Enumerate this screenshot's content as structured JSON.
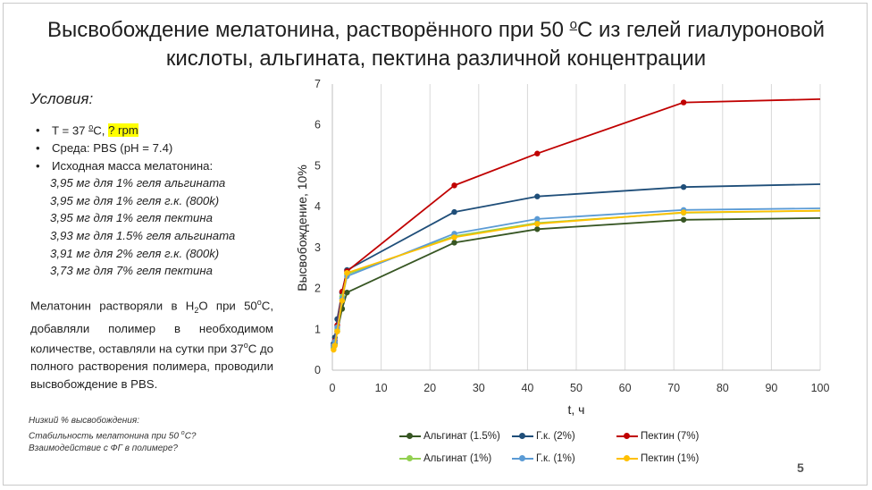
{
  "slide": {
    "title_part1": "Высвобождение мелатонина, растворённого при 50 ",
    "title_deg": "о",
    "title_part2": "С из гелей гиалуроновой",
    "title_line2": "кислоты, альгината, пектина различной концентрации",
    "conditions_heading": "Условия:",
    "cond_temp": "T = 37 ",
    "cond_temp_deg": "о",
    "cond_temp_unit": "С, ",
    "cond_rpm": "? rpm",
    "cond_medium": "Среда: PBS (pH = 7.4)",
    "cond_mass_heading": "Исходная масса мелатонина:",
    "masses": [
      "3,95 мг для 1% геля альгината",
      "3,95 мг для 1% геля г.к. (800k)",
      "3,95 мг для 1% геля пектина",
      "3,93 мг для 1.5% геля альгината",
      "3,91 мг для 2% геля г.к. (800k)",
      "3,73 мг для 7% геля пектина"
    ],
    "paragraph": [
      "Мелатонин растворяли в H",
      "2",
      "O при 50",
      "о",
      "С, добавляли полимер в необходимом количестве, оставляли на сутки при 37",
      "о",
      "С до полного растворения полимера, проводили высвобождение в PBS."
    ],
    "notes": [
      "Низкий % высвобождения:",
      "Стабильность мелатонина при 50 ",
      "о",
      "С?",
      "Взаимодействие с ФГ в полимере?"
    ],
    "page_number": "5"
  },
  "chart_data": {
    "type": "line",
    "xlabel": "t, ч",
    "ylabel": "Высвобождение, 10%",
    "xlim": [
      0,
      100
    ],
    "ylim": [
      0,
      7
    ],
    "xticks": [
      0,
      10,
      20,
      30,
      40,
      50,
      60,
      70,
      80,
      90,
      100
    ],
    "yticks": [
      0,
      1,
      2,
      3,
      4,
      5,
      6,
      7
    ],
    "grid": "vertical",
    "legend_position": "bottom",
    "series": [
      {
        "name": "Альгинат (1.5%)",
        "color": "#375623",
        "x": [
          0.25,
          0.5,
          1,
          2,
          3,
          25,
          42,
          72,
          100
        ],
        "y": [
          0.55,
          0.65,
          0.95,
          1.5,
          1.9,
          3.12,
          3.45,
          3.68,
          3.72
        ],
        "marker_count": 8
      },
      {
        "name": "Г.к. (2%)",
        "color": "#1f4e79",
        "x": [
          0.25,
          0.5,
          1,
          2,
          3,
          25,
          42,
          72,
          100
        ],
        "y": [
          0.65,
          0.8,
          1.25,
          1.9,
          2.45,
          3.87,
          4.25,
          4.48,
          4.55
        ],
        "marker_count": 8
      },
      {
        "name": "Пектин (7%)",
        "color": "#c00000",
        "x": [
          0.25,
          0.5,
          1,
          2,
          3,
          25,
          42,
          72,
          100
        ],
        "y": [
          0.6,
          0.72,
          1.1,
          1.92,
          2.42,
          4.52,
          5.3,
          6.55,
          6.63
        ],
        "marker_count": 8
      },
      {
        "name": "Альгинат (1%)",
        "color": "#92d050",
        "x": [
          0.25,
          0.5,
          1,
          2,
          3,
          25,
          42,
          72,
          100
        ],
        "y": [
          0.55,
          0.62,
          1.0,
          1.8,
          2.35,
          3.28,
          3.6,
          3.85,
          3.9
        ],
        "marker_count": 8
      },
      {
        "name": "Г.к. (1%)",
        "color": "#5b9bd5",
        "x": [
          0.25,
          0.5,
          1,
          2,
          3,
          25,
          42,
          72,
          100
        ],
        "y": [
          0.6,
          0.7,
          1.05,
          1.75,
          2.3,
          3.34,
          3.7,
          3.92,
          3.96
        ],
        "marker_count": 8
      },
      {
        "name": "Пектин (1%)",
        "color": "#ffc000",
        "x": [
          0.25,
          0.5,
          1,
          2,
          3,
          25,
          42,
          72,
          100
        ],
        "y": [
          0.5,
          0.6,
          0.95,
          1.7,
          2.38,
          3.25,
          3.58,
          3.86,
          3.9
        ],
        "marker_count": 8
      }
    ]
  }
}
